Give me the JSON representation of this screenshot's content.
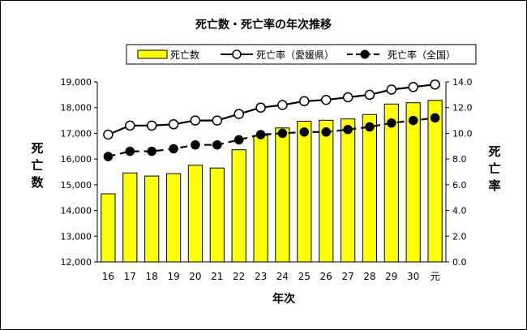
{
  "chart_data": {
    "type": "bar+line",
    "title": "死亡数・死亡率の年次推移",
    "xlabel": "年次",
    "ylabel_left": "死亡数",
    "ylabel_right": "死亡率",
    "categories": [
      "16",
      "17",
      "18",
      "19",
      "20",
      "21",
      "22",
      "23",
      "24",
      "25",
      "26",
      "27",
      "28",
      "29",
      "30",
      "元"
    ],
    "y_left": {
      "lim": [
        12000,
        19000
      ],
      "ticks": [
        "12,000",
        "13,000",
        "14,000",
        "15,000",
        "16,000",
        "17,000",
        "18,000",
        "19,000"
      ],
      "tick_values": [
        12000,
        13000,
        14000,
        15000,
        16000,
        17000,
        18000,
        19000
      ]
    },
    "y_right": {
      "lim": [
        0,
        14
      ],
      "ticks": [
        "0.0",
        "2.0",
        "4.0",
        "6.0",
        "8.0",
        "10.0",
        "12.0",
        "14.0"
      ],
      "tick_values": [
        0,
        2,
        4,
        6,
        8,
        10,
        12,
        14
      ]
    },
    "grid": false,
    "legend_position": "top",
    "series": [
      {
        "name": "死亡数",
        "type": "bar",
        "axis": "left",
        "color": "#ffff00",
        "values": [
          14650,
          15460,
          15340,
          15430,
          15760,
          15650,
          16360,
          16920,
          17210,
          17470,
          17510,
          17560,
          17730,
          18140,
          18190,
          18280
        ]
      },
      {
        "name": "死亡率（愛媛県）",
        "type": "line",
        "axis": "right",
        "marker": "open-circle",
        "line_style": "solid",
        "color": "#000000",
        "values": [
          9.9,
          10.6,
          10.6,
          10.7,
          11.0,
          11.0,
          11.5,
          12.0,
          12.2,
          12.5,
          12.6,
          12.8,
          13.0,
          13.4,
          13.6,
          13.8
        ]
      },
      {
        "name": "死亡率（全国）",
        "type": "line",
        "axis": "right",
        "marker": "filled-circle",
        "line_style": "dashed",
        "color": "#000000",
        "values": [
          8.2,
          8.6,
          8.6,
          8.8,
          9.1,
          9.1,
          9.5,
          9.9,
          10.0,
          10.1,
          10.1,
          10.3,
          10.5,
          10.8,
          11.0,
          11.2
        ]
      }
    ]
  }
}
